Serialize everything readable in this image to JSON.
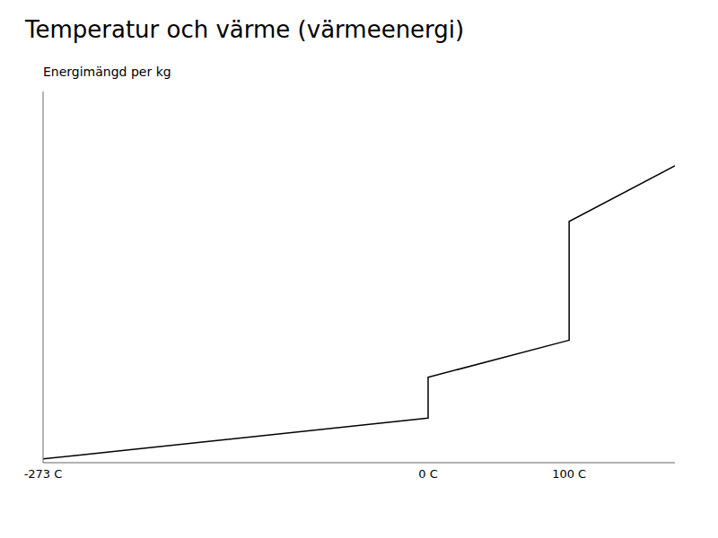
{
  "chart_data": {
    "type": "line",
    "title": "Temperatur och värme (värmeenergi)",
    "y_label": "Energimängd per kg",
    "x": [
      -273,
      -0.01,
      0,
      0,
      0.01,
      99.99,
      100,
      100,
      100.01,
      175
    ],
    "values": [
      0.01,
      0.12,
      0.12,
      0.23,
      0.23,
      0.33,
      0.33,
      0.65,
      0.65,
      0.8
    ],
    "color": "#000000",
    "xlim": [
      -273,
      175
    ],
    "xticks": [
      {
        "value": -273,
        "label": "-273 C"
      },
      {
        "value": 0,
        "label": "0 C"
      },
      {
        "value": 100,
        "label": "100 C"
      }
    ],
    "ylim": [
      0,
      1.0
    ],
    "tick_labels": "x",
    "grid": false
  }
}
